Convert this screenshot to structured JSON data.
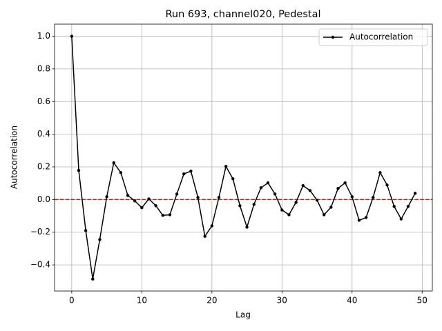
{
  "chart_data": {
    "type": "line",
    "title": "Run 693, channel020, Pedestal",
    "x_label": "Lag",
    "y_label": "Autocorrelation",
    "x": [
      0,
      1,
      2,
      3,
      4,
      5,
      6,
      7,
      8,
      9,
      10,
      11,
      12,
      13,
      14,
      15,
      16,
      17,
      18,
      19,
      20,
      21,
      22,
      23,
      24,
      25,
      26,
      27,
      28,
      29,
      30,
      31,
      32,
      33,
      34,
      35,
      36,
      37,
      38,
      39,
      40,
      41,
      42,
      43,
      44,
      45,
      46,
      47,
      48,
      49
    ],
    "series": [
      {
        "name": "Autocorrelation",
        "color": "#000000",
        "values": [
          1.0,
          0.178,
          -0.19,
          -0.487,
          -0.245,
          0.017,
          0.225,
          0.165,
          0.025,
          -0.008,
          -0.05,
          0.004,
          -0.038,
          -0.097,
          -0.093,
          0.034,
          0.157,
          0.174,
          0.013,
          -0.225,
          -0.161,
          0.013,
          0.203,
          0.127,
          -0.038,
          -0.169,
          -0.03,
          0.072,
          0.102,
          0.034,
          -0.064,
          -0.093,
          -0.017,
          0.085,
          0.055,
          -0.004,
          -0.093,
          -0.047,
          0.068,
          0.102,
          0.017,
          -0.127,
          -0.11,
          0.013,
          0.165,
          0.089,
          -0.042,
          -0.119,
          -0.042,
          0.038
        ]
      }
    ],
    "hline": {
      "value": 0,
      "color": "#ff0000"
    },
    "xlim": [
      -2.45,
      51.45
    ],
    "xticks": [
      0,
      10,
      20,
      30,
      40,
      50
    ],
    "ylim": [
      -0.56,
      1.074
    ],
    "yticks": [
      {
        "value": -0.4,
        "label": "−0.4"
      },
      {
        "value": -0.2,
        "label": "−0.2"
      },
      {
        "value": 0,
        "label": "0.0"
      },
      {
        "value": 0.2,
        "label": "0.2"
      },
      {
        "value": 0.4,
        "label": "0.4"
      },
      {
        "value": 0.6,
        "label": "0.6"
      },
      {
        "value": 0.8,
        "label": "0.8"
      },
      {
        "value": 1.0,
        "label": "1.0"
      }
    ],
    "grid": true,
    "legend": "upper right"
  }
}
